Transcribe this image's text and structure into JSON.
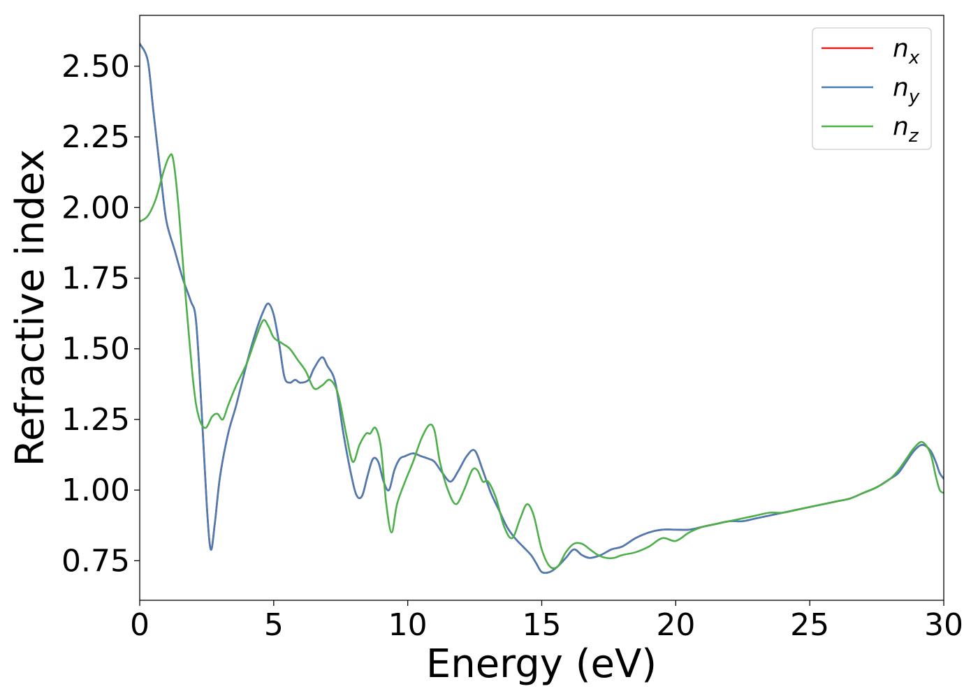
{
  "chart_data": {
    "type": "line",
    "xlabel": "Energy (eV)",
    "ylabel": "Refractive index",
    "xlim": [
      0,
      30
    ],
    "ylim": [
      0.61,
      2.68
    ],
    "xticks": [
      0,
      5,
      10,
      15,
      20,
      25,
      30
    ],
    "xtick_labels": [
      "0",
      "5",
      "10",
      "15",
      "20",
      "25",
      "30"
    ],
    "yticks": [
      0.75,
      1.0,
      1.25,
      1.5,
      1.75,
      2.0,
      2.25,
      2.5
    ],
    "ytick_labels": [
      "0.75",
      "1.00",
      "1.25",
      "1.50",
      "1.75",
      "2.00",
      "2.25",
      "2.50"
    ],
    "grid": false,
    "legend_position": "top-right",
    "series": [
      {
        "name": "n_x",
        "base": "n",
        "sub": "x",
        "color": "#e41a1c",
        "x": [
          0.0,
          0.3,
          0.5,
          0.8,
          1.0,
          1.3,
          1.6,
          1.9,
          2.1,
          2.3,
          2.5,
          2.65,
          2.8,
          3.0,
          3.3,
          3.6,
          4.0,
          4.3,
          4.6,
          4.8,
          5.0,
          5.2,
          5.4,
          5.6,
          5.8,
          6.0,
          6.3,
          6.5,
          6.8,
          7.0,
          7.3,
          7.6,
          7.9,
          8.1,
          8.3,
          8.5,
          8.7,
          8.9,
          9.1,
          9.3,
          9.5,
          9.7,
          9.9,
          10.2,
          10.5,
          10.8,
          11.0,
          11.3,
          11.6,
          11.9,
          12.2,
          12.5,
          12.8,
          13.1,
          13.4,
          13.7,
          14.0,
          14.3,
          14.6,
          14.8,
          15.0,
          15.3,
          15.6,
          15.9,
          16.2,
          16.5,
          16.8,
          17.2,
          17.6,
          18.0,
          18.5,
          19.0,
          19.5,
          20.0,
          20.5,
          21.0,
          21.5,
          22.0,
          22.5,
          23.0,
          23.5,
          24.0,
          24.5,
          25.0,
          25.5,
          26.0,
          26.5,
          27.0,
          27.5,
          28.0,
          28.3,
          28.6,
          28.9,
          29.2,
          29.5,
          29.7,
          29.85,
          30.0
        ],
        "y": [
          2.58,
          2.52,
          2.35,
          2.1,
          1.95,
          1.85,
          1.75,
          1.67,
          1.6,
          1.3,
          0.95,
          0.79,
          0.88,
          1.05,
          1.2,
          1.3,
          1.45,
          1.55,
          1.63,
          1.66,
          1.62,
          1.52,
          1.4,
          1.38,
          1.39,
          1.38,
          1.39,
          1.43,
          1.47,
          1.44,
          1.38,
          1.2,
          1.05,
          0.98,
          0.98,
          1.05,
          1.11,
          1.1,
          1.03,
          1.0,
          1.07,
          1.11,
          1.12,
          1.13,
          1.12,
          1.11,
          1.1,
          1.06,
          1.03,
          1.07,
          1.12,
          1.14,
          1.07,
          0.99,
          0.93,
          0.87,
          0.83,
          0.8,
          0.77,
          0.74,
          0.71,
          0.71,
          0.73,
          0.76,
          0.79,
          0.77,
          0.76,
          0.77,
          0.79,
          0.8,
          0.83,
          0.85,
          0.86,
          0.86,
          0.86,
          0.87,
          0.88,
          0.89,
          0.89,
          0.9,
          0.91,
          0.92,
          0.93,
          0.94,
          0.95,
          0.96,
          0.97,
          0.99,
          1.01,
          1.04,
          1.06,
          1.1,
          1.14,
          1.16,
          1.14,
          1.1,
          1.06,
          1.04
        ]
      },
      {
        "name": "n_y",
        "base": "n",
        "sub": "y",
        "color": "#4a7cb3",
        "x": [
          0.0,
          0.3,
          0.5,
          0.8,
          1.0,
          1.3,
          1.6,
          1.9,
          2.1,
          2.3,
          2.5,
          2.65,
          2.8,
          3.0,
          3.3,
          3.6,
          4.0,
          4.3,
          4.6,
          4.8,
          5.0,
          5.2,
          5.4,
          5.6,
          5.8,
          6.0,
          6.3,
          6.5,
          6.8,
          7.0,
          7.3,
          7.6,
          7.9,
          8.1,
          8.3,
          8.5,
          8.7,
          8.9,
          9.1,
          9.3,
          9.5,
          9.7,
          9.9,
          10.2,
          10.5,
          10.8,
          11.0,
          11.3,
          11.6,
          11.9,
          12.2,
          12.5,
          12.8,
          13.1,
          13.4,
          13.7,
          14.0,
          14.3,
          14.6,
          14.8,
          15.0,
          15.3,
          15.6,
          15.9,
          16.2,
          16.5,
          16.8,
          17.2,
          17.6,
          18.0,
          18.5,
          19.0,
          19.5,
          20.0,
          20.5,
          21.0,
          21.5,
          22.0,
          22.5,
          23.0,
          23.5,
          24.0,
          24.5,
          25.0,
          25.5,
          26.0,
          26.5,
          27.0,
          27.5,
          28.0,
          28.3,
          28.6,
          28.9,
          29.2,
          29.5,
          29.7,
          29.85,
          30.0
        ],
        "y": [
          2.58,
          2.52,
          2.35,
          2.1,
          1.95,
          1.85,
          1.75,
          1.67,
          1.6,
          1.3,
          0.95,
          0.79,
          0.88,
          1.05,
          1.2,
          1.3,
          1.45,
          1.55,
          1.63,
          1.66,
          1.62,
          1.52,
          1.4,
          1.38,
          1.39,
          1.38,
          1.39,
          1.43,
          1.47,
          1.44,
          1.38,
          1.2,
          1.05,
          0.98,
          0.98,
          1.05,
          1.11,
          1.1,
          1.03,
          1.0,
          1.07,
          1.11,
          1.12,
          1.13,
          1.12,
          1.11,
          1.1,
          1.06,
          1.03,
          1.07,
          1.12,
          1.14,
          1.07,
          0.99,
          0.93,
          0.87,
          0.83,
          0.8,
          0.77,
          0.74,
          0.71,
          0.71,
          0.73,
          0.76,
          0.79,
          0.77,
          0.76,
          0.77,
          0.79,
          0.8,
          0.83,
          0.85,
          0.86,
          0.86,
          0.86,
          0.87,
          0.88,
          0.89,
          0.89,
          0.9,
          0.91,
          0.92,
          0.93,
          0.94,
          0.95,
          0.96,
          0.97,
          0.99,
          1.01,
          1.04,
          1.06,
          1.1,
          1.14,
          1.16,
          1.14,
          1.1,
          1.06,
          1.04
        ]
      },
      {
        "name": "n_z",
        "base": "n",
        "sub": "z",
        "color": "#4daf4a",
        "x": [
          0.0,
          0.3,
          0.6,
          0.9,
          1.1,
          1.25,
          1.45,
          1.7,
          2.0,
          2.2,
          2.45,
          2.7,
          2.9,
          3.1,
          3.3,
          3.6,
          4.0,
          4.3,
          4.6,
          4.8,
          5.0,
          5.3,
          5.6,
          5.9,
          6.2,
          6.5,
          6.8,
          7.1,
          7.4,
          7.7,
          7.95,
          8.2,
          8.45,
          8.6,
          8.8,
          9.0,
          9.2,
          9.4,
          9.6,
          9.9,
          10.2,
          10.5,
          10.8,
          11.0,
          11.2,
          11.5,
          11.8,
          12.1,
          12.4,
          12.6,
          12.8,
          13.0,
          13.3,
          13.6,
          13.9,
          14.2,
          14.45,
          14.7,
          15.0,
          15.3,
          15.6,
          15.9,
          16.2,
          16.5,
          16.8,
          17.1,
          17.4,
          17.7,
          18.0,
          18.5,
          19.0,
          19.5,
          20.0,
          20.5,
          21.0,
          21.5,
          22.0,
          22.5,
          23.0,
          23.5,
          24.0,
          24.5,
          25.0,
          25.5,
          26.0,
          26.5,
          27.0,
          27.5,
          28.0,
          28.3,
          28.6,
          28.9,
          29.2,
          29.5,
          29.7,
          29.85,
          30.0
        ],
        "y": [
          1.95,
          1.97,
          2.03,
          2.13,
          2.18,
          2.17,
          2.0,
          1.7,
          1.38,
          1.26,
          1.22,
          1.26,
          1.27,
          1.25,
          1.3,
          1.37,
          1.45,
          1.53,
          1.6,
          1.58,
          1.54,
          1.52,
          1.5,
          1.46,
          1.42,
          1.36,
          1.37,
          1.39,
          1.34,
          1.2,
          1.1,
          1.16,
          1.2,
          1.2,
          1.22,
          1.15,
          0.95,
          0.85,
          0.95,
          1.03,
          1.1,
          1.18,
          1.23,
          1.21,
          1.1,
          1.0,
          0.95,
          1.0,
          1.07,
          1.07,
          1.03,
          1.03,
          0.97,
          0.87,
          0.83,
          0.9,
          0.95,
          0.91,
          0.79,
          0.73,
          0.73,
          0.78,
          0.81,
          0.81,
          0.79,
          0.77,
          0.76,
          0.76,
          0.77,
          0.78,
          0.8,
          0.83,
          0.82,
          0.85,
          0.87,
          0.88,
          0.89,
          0.9,
          0.91,
          0.92,
          0.92,
          0.93,
          0.94,
          0.95,
          0.96,
          0.97,
          0.99,
          1.01,
          1.04,
          1.07,
          1.11,
          1.15,
          1.17,
          1.13,
          1.05,
          1.0,
          0.99
        ]
      }
    ]
  }
}
